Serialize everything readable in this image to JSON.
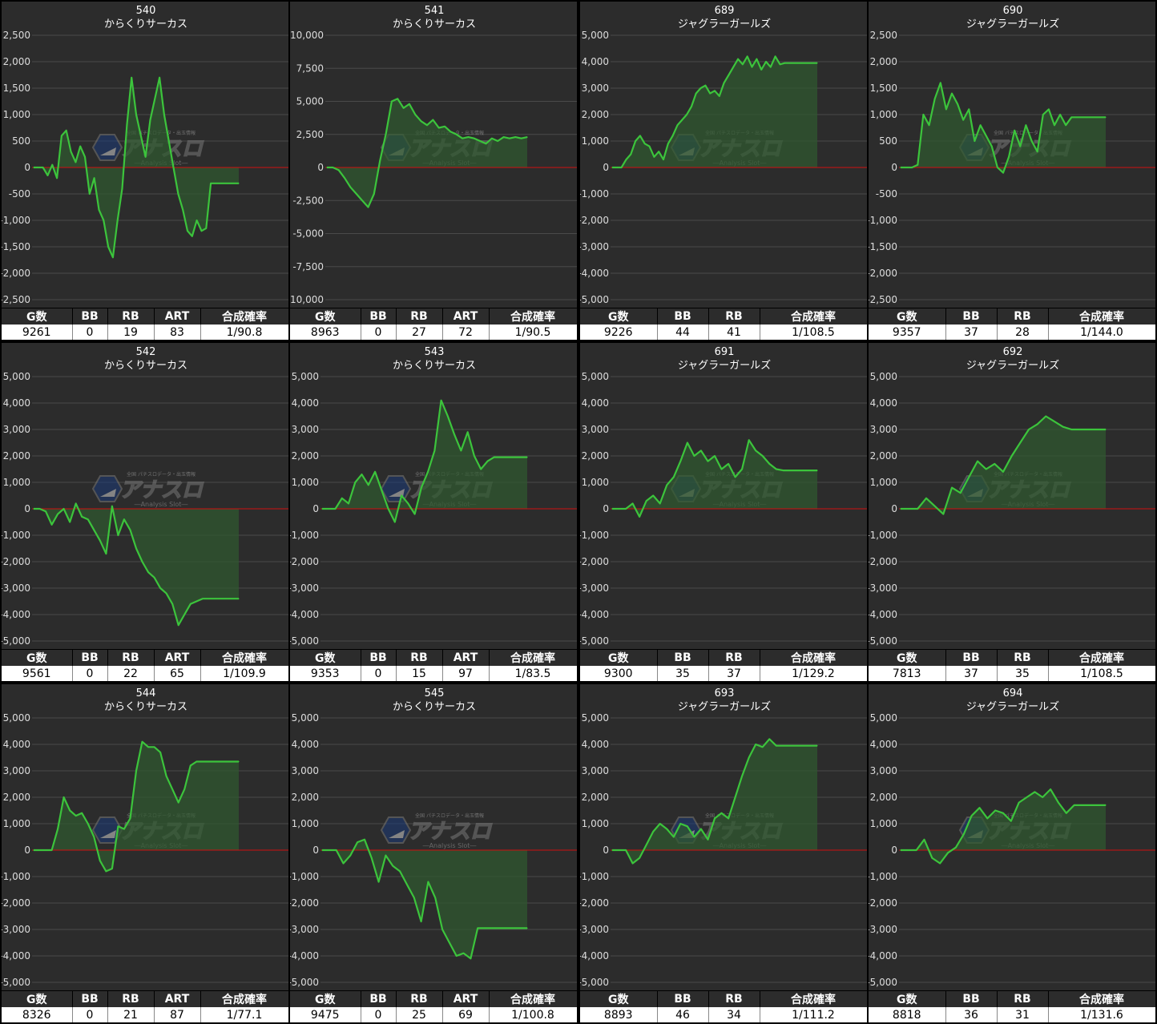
{
  "labels": {
    "g": "G数",
    "bb": "BB",
    "rb": "RB",
    "art": "ART",
    "prob": "合成確率"
  },
  "watermark": {
    "small": "全国 パチスロデータ・出玉情報",
    "main": "アナスロ",
    "sub": "―Analysis Slot―"
  },
  "colors": {
    "background": "#2c2c2c",
    "grid": "#4a4a4a",
    "zero_line": "#d01010",
    "line": "#3cc43c",
    "area": "#2f5a2f"
  },
  "chart_data": [
    {
      "type": "area",
      "title": "540",
      "subtitle": "からくりサーカス",
      "ylim": [
        -2500,
        2500
      ],
      "yticks": [
        2500,
        2000,
        1500,
        1000,
        500,
        0,
        -500,
        -1000,
        -1500,
        -2000,
        -2500
      ],
      "tick_labels": [
        "2,500",
        "2,000",
        "1,500",
        "1,000",
        "500",
        "0",
        "-500",
        "-1,000",
        "-1,500",
        "-2,000",
        "-2,500"
      ],
      "y": [
        0,
        0,
        0,
        -150,
        50,
        -200,
        600,
        700,
        300,
        100,
        400,
        200,
        -500,
        -200,
        -800,
        -1000,
        -1500,
        -1700,
        -1000,
        -400,
        800,
        1700,
        1000,
        600,
        200,
        900,
        1300,
        1700,
        1000,
        500,
        0,
        -500,
        -800,
        -1200,
        -1300,
        -1000,
        -1200,
        -1150,
        -300,
        -300,
        -300,
        -300,
        -300,
        -300,
        -300
      ],
      "stats": {
        "g": "9261",
        "bb": "0",
        "rb": "19",
        "art": "83",
        "prob": "1/90.8"
      }
    },
    {
      "type": "area",
      "title": "541",
      "subtitle": "からくりサーカス",
      "ylim": [
        -10000,
        10000
      ],
      "yticks": [
        10000,
        7500,
        5000,
        2500,
        0,
        -2500,
        -5000,
        -7500,
        -10000
      ],
      "tick_labels": [
        "10,000",
        "7,500",
        "5,000",
        "2,500",
        "0",
        "-2,500",
        "-5,000",
        "-7,500",
        "-10,000"
      ],
      "y": [
        0,
        0,
        -200,
        -800,
        -1500,
        -2000,
        -2500,
        -3000,
        -2000,
        500,
        2500,
        5000,
        5200,
        4500,
        4800,
        4000,
        3500,
        3200,
        3600,
        3000,
        3100,
        2700,
        2500,
        2200,
        2300,
        2200,
        2000,
        1800,
        2200,
        2000,
        2300,
        2200,
        2300,
        2200,
        2300
      ],
      "stats": {
        "g": "8963",
        "bb": "0",
        "rb": "27",
        "art": "72",
        "prob": "1/90.5"
      }
    },
    {
      "type": "area",
      "title": "689",
      "subtitle": "ジャグラーガールズ",
      "ylim": [
        -5000,
        5000
      ],
      "yticks": [
        5000,
        4000,
        3000,
        2000,
        1000,
        0,
        -1000,
        -2000,
        -3000,
        -4000,
        -5000
      ],
      "tick_labels": [
        "5,000",
        "4,000",
        "3,000",
        "2,000",
        "1,000",
        "0",
        "-1,000",
        "-2,000",
        "-3,000",
        "-4,000",
        "-5,000"
      ],
      "y": [
        0,
        0,
        0,
        300,
        500,
        1000,
        1200,
        900,
        800,
        400,
        600,
        300,
        900,
        1200,
        1600,
        1800,
        2000,
        2300,
        2800,
        3000,
        3100,
        2800,
        2900,
        2700,
        3200,
        3500,
        3800,
        4100,
        3900,
        4200,
        3800,
        4100,
        3700,
        4000,
        3800,
        4200,
        3900,
        3950,
        3950,
        3950,
        3950,
        3950,
        3950,
        3950,
        3950
      ],
      "stats": {
        "g": "9226",
        "bb": "44",
        "rb": "41",
        "prob": "1/108.5"
      }
    },
    {
      "type": "area",
      "title": "690",
      "subtitle": "ジャグラーガールズ",
      "ylim": [
        -2500,
        2500
      ],
      "yticks": [
        2500,
        2000,
        1500,
        1000,
        500,
        0,
        -500,
        -1000,
        -1500,
        -2000,
        -2500
      ],
      "tick_labels": [
        "2,500",
        "2,000",
        "1,500",
        "1,000",
        "500",
        "0",
        "-500",
        "-1,000",
        "-1,500",
        "-2,000",
        "-2,500"
      ],
      "y": [
        0,
        0,
        0,
        50,
        1000,
        800,
        1300,
        1600,
        1100,
        1400,
        1200,
        900,
        1100,
        500,
        800,
        600,
        400,
        0,
        -100,
        200,
        700,
        400,
        800,
        500,
        300,
        1000,
        1100,
        800,
        1000,
        800,
        950,
        950,
        950,
        950,
        950,
        950,
        950
      ],
      "stats": {
        "g": "9357",
        "bb": "37",
        "rb": "28",
        "prob": "1/144.0"
      }
    },
    {
      "type": "area",
      "title": "542",
      "subtitle": "からくりサーカス",
      "ylim": [
        -5000,
        5000
      ],
      "yticks": [
        5000,
        4000,
        3000,
        2000,
        1000,
        0,
        -1000,
        -2000,
        -3000,
        -4000,
        -5000
      ],
      "tick_labels": [
        "5,000",
        "4,000",
        "3,000",
        "2,000",
        "1,000",
        "0",
        "-1,000",
        "-2,000",
        "-3,000",
        "-4,000",
        "-5,000"
      ],
      "y": [
        0,
        0,
        -100,
        -600,
        -200,
        0,
        -500,
        200,
        -300,
        -400,
        -800,
        -1200,
        -1700,
        100,
        -1000,
        -400,
        -800,
        -1500,
        -2000,
        -2400,
        -2600,
        -3000,
        -3200,
        -3600,
        -4400,
        -4000,
        -3600,
        -3500,
        -3400,
        -3400,
        -3400,
        -3400,
        -3400,
        -3400,
        -3400
      ],
      "stats": {
        "g": "9561",
        "bb": "0",
        "rb": "22",
        "art": "65",
        "prob": "1/109.9"
      }
    },
    {
      "type": "area",
      "title": "543",
      "subtitle": "からくりサーカス",
      "ylim": [
        -5000,
        5000
      ],
      "yticks": [
        5000,
        4000,
        3000,
        2000,
        1000,
        0,
        -1000,
        -2000,
        -3000,
        -4000,
        -5000
      ],
      "tick_labels": [
        "5,000",
        "4,000",
        "3,000",
        "2,000",
        "1,000",
        "0",
        "-1,000",
        "-2,000",
        "-3,000",
        "-4,000",
        "-5,000"
      ],
      "y": [
        0,
        0,
        0,
        400,
        200,
        1000,
        1300,
        900,
        1400,
        700,
        0,
        -500,
        500,
        200,
        -200,
        800,
        1400,
        2200,
        4100,
        3500,
        2800,
        2200,
        2900,
        2000,
        1500,
        1800,
        1950,
        1950,
        1950,
        1950,
        1950,
        1950
      ],
      "stats": {
        "g": "9353",
        "bb": "0",
        "rb": "15",
        "art": "97",
        "prob": "1/83.5"
      }
    },
    {
      "type": "area",
      "title": "691",
      "subtitle": "ジャグラーガールズ",
      "ylim": [
        -5000,
        5000
      ],
      "yticks": [
        5000,
        4000,
        3000,
        2000,
        1000,
        0,
        -1000,
        -2000,
        -3000,
        -4000,
        -5000
      ],
      "tick_labels": [
        "5,000",
        "4,000",
        "3,000",
        "2,000",
        "1,000",
        "0",
        "-1,000",
        "-2,000",
        "-3,000",
        "-4,000",
        "-5,000"
      ],
      "y": [
        0,
        0,
        0,
        200,
        -300,
        300,
        500,
        200,
        900,
        1200,
        1800,
        2500,
        2000,
        2200,
        1800,
        2000,
        1500,
        1700,
        1200,
        1500,
        2600,
        2200,
        2000,
        1700,
        1500,
        1450,
        1450,
        1450,
        1450,
        1450,
        1450
      ],
      "stats": {
        "g": "9300",
        "bb": "35",
        "rb": "37",
        "prob": "1/129.2"
      }
    },
    {
      "type": "area",
      "title": "692",
      "subtitle": "ジャグラーガールズ",
      "ylim": [
        -5000,
        5000
      ],
      "yticks": [
        5000,
        4000,
        3000,
        2000,
        1000,
        0,
        -1000,
        -2000,
        -3000,
        -4000,
        -5000
      ],
      "tick_labels": [
        "5,000",
        "4,000",
        "3,000",
        "2,000",
        "1,000",
        "0",
        "-1,000",
        "-2,000",
        "-3,000",
        "-4,000",
        "-5,000"
      ],
      "y": [
        0,
        0,
        0,
        400,
        100,
        -200,
        800,
        600,
        1200,
        1800,
        1500,
        1700,
        1400,
        2000,
        2500,
        3000,
        3200,
        3500,
        3300,
        3100,
        3000,
        3000,
        3000,
        3000,
        3000
      ],
      "stats": {
        "g": "7813",
        "bb": "37",
        "rb": "35",
        "prob": "1/108.5"
      }
    },
    {
      "type": "area",
      "title": "544",
      "subtitle": "からくりサーカス",
      "ylim": [
        -5000,
        5000
      ],
      "yticks": [
        5000,
        4000,
        3000,
        2000,
        1000,
        0,
        -1000,
        -2000,
        -3000,
        -4000,
        -5000
      ],
      "tick_labels": [
        "5,000",
        "4,000",
        "3,000",
        "2,000",
        "1,000",
        "0",
        "-1,000",
        "-2,000",
        "-3,000",
        "-4,000",
        "-5,000"
      ],
      "y": [
        0,
        0,
        0,
        0,
        800,
        2000,
        1500,
        1300,
        1400,
        1000,
        500,
        -400,
        -800,
        -700,
        900,
        800,
        1200,
        3000,
        4100,
        3900,
        3900,
        3700,
        2800,
        2300,
        1800,
        2300,
        3200,
        3350,
        3350,
        3350,
        3350,
        3350,
        3350,
        3350,
        3350
      ],
      "stats": {
        "g": "8326",
        "bb": "0",
        "rb": "21",
        "art": "87",
        "prob": "1/77.1"
      }
    },
    {
      "type": "area",
      "title": "545",
      "subtitle": "からくりサーカス",
      "ylim": [
        -5000,
        5000
      ],
      "yticks": [
        5000,
        4000,
        3000,
        2000,
        1000,
        0,
        -1000,
        -2000,
        -3000,
        -4000,
        -5000
      ],
      "tick_labels": [
        "5,000",
        "4,000",
        "3,000",
        "2,000",
        "1,000",
        "0",
        "-1,000",
        "-2,000",
        "-3,000",
        "-4,000",
        "-5,000"
      ],
      "y": [
        0,
        0,
        0,
        -500,
        -200,
        300,
        400,
        -300,
        -1200,
        -200,
        -600,
        -800,
        -1300,
        -1800,
        -2700,
        -1200,
        -1800,
        -3000,
        -3500,
        -4000,
        -3900,
        -4100,
        -2950,
        -2950,
        -2950,
        -2950,
        -2950,
        -2950,
        -2950,
        -2950
      ],
      "stats": {
        "g": "9475",
        "bb": "0",
        "rb": "25",
        "art": "69",
        "prob": "1/100.8"
      }
    },
    {
      "type": "area",
      "title": "693",
      "subtitle": "ジャグラーガールズ",
      "ylim": [
        -5000,
        5000
      ],
      "yticks": [
        5000,
        4000,
        3000,
        2000,
        1000,
        0,
        -1000,
        -2000,
        -3000,
        -4000,
        -5000
      ],
      "tick_labels": [
        "5,000",
        "4,000",
        "3,000",
        "2,000",
        "1,000",
        "0",
        "-1,000",
        "-2,000",
        "-3,000",
        "-4,000",
        "-5,000"
      ],
      "y": [
        0,
        0,
        0,
        -500,
        -300,
        200,
        700,
        1000,
        800,
        500,
        1000,
        900,
        500,
        800,
        400,
        1200,
        1400,
        1200,
        2000,
        2800,
        3500,
        4000,
        3900,
        4200,
        3950,
        3950,
        3950,
        3950,
        3950,
        3950,
        3950
      ],
      "stats": {
        "g": "8893",
        "bb": "46",
        "rb": "34",
        "prob": "1/111.2"
      }
    },
    {
      "type": "area",
      "title": "694",
      "subtitle": "ジャグラーガールズ",
      "ylim": [
        -5000,
        5000
      ],
      "yticks": [
        5000,
        4000,
        3000,
        2000,
        1000,
        0,
        -1000,
        -2000,
        -3000,
        -4000,
        -5000
      ],
      "tick_labels": [
        "5,000",
        "4,000",
        "3,000",
        "2,000",
        "1,000",
        "0",
        "-1,000",
        "-2,000",
        "-3,000",
        "-4,000",
        "-5,000"
      ],
      "y": [
        0,
        0,
        0,
        400,
        -300,
        -500,
        -100,
        100,
        600,
        1300,
        1600,
        1200,
        1500,
        1400,
        1100,
        1800,
        2000,
        2200,
        2000,
        2300,
        1800,
        1400,
        1700,
        1700,
        1700,
        1700,
        1700
      ],
      "stats": {
        "g": "8818",
        "bb": "36",
        "rb": "31",
        "prob": "1/131.6"
      }
    }
  ]
}
